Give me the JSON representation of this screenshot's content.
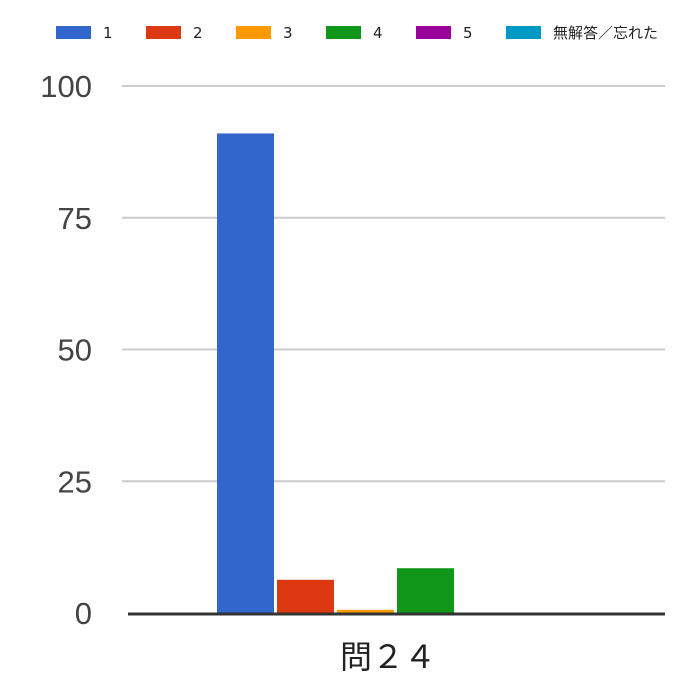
{
  "chart_data": {
    "type": "bar",
    "categories": [
      "問２４"
    ],
    "series": [
      {
        "name": "1",
        "values": [
          91
        ],
        "color": "#3366cc"
      },
      {
        "name": "2",
        "values": [
          6.3
        ],
        "color": "#dc3912"
      },
      {
        "name": "3",
        "values": [
          0.6
        ],
        "color": "#ff9900"
      },
      {
        "name": "4",
        "values": [
          8.5
        ],
        "color": "#109618"
      },
      {
        "name": "5",
        "values": [
          0
        ],
        "color": "#990099"
      },
      {
        "name": "無解答／忘れた",
        "values": [
          0
        ],
        "color": "#0099c6"
      }
    ],
    "yticks": [
      "0",
      "25",
      "50",
      "75",
      "100"
    ],
    "ylim": [
      0,
      100
    ],
    "grid": true,
    "legend": "top"
  }
}
